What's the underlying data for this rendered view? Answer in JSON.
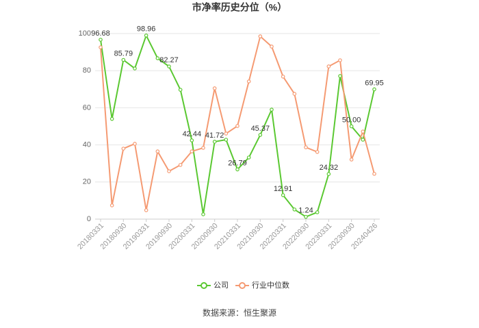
{
  "chart_data": {
    "type": "line",
    "title": "市净率历史分位（%）",
    "categories": [
      "20180331",
      null,
      "20180930",
      null,
      "20190331",
      null,
      "20190930",
      null,
      "20200331",
      null,
      "20200930",
      null,
      "20210331",
      null,
      "20210930",
      null,
      "20220331",
      null,
      "20220930",
      null,
      "20230331",
      null,
      "20230930",
      null,
      "20240426"
    ],
    "series": [
      {
        "name": "公司",
        "color": "#5ac831",
        "values": [
          96.68,
          54,
          85.79,
          81.2,
          98.96,
          86.7,
          82.27,
          69.7,
          42.44,
          2.6,
          41.72,
          42.8,
          26.79,
          33.2,
          45.37,
          59,
          12.91,
          5.2,
          1.24,
          3.7,
          24.32,
          77.1,
          50.0,
          42.8,
          69.95
        ],
        "value_labels": [
          "96.68",
          null,
          "85.79",
          null,
          "98.96",
          null,
          "82.27",
          null,
          "42.44",
          null,
          "41.72",
          null,
          "26.79",
          null,
          "45.37",
          null,
          "12.91",
          null,
          "1.24",
          null,
          "24.32",
          null,
          "50.00",
          null,
          "69.95"
        ]
      },
      {
        "name": "行业中位数",
        "color": "#f59a72",
        "values": [
          92.6,
          7.4,
          38,
          40.6,
          4.8,
          36.5,
          25.8,
          29.2,
          36.5,
          38.4,
          70.5,
          46.1,
          50.2,
          74.2,
          98.5,
          93,
          76.8,
          67.5,
          38.7,
          36.2,
          82.3,
          85.6,
          32.1,
          47.2,
          24.4
        ]
      }
    ],
    "ylim": [
      0,
      100
    ],
    "yticks": [
      0,
      20,
      40,
      60,
      80,
      100
    ],
    "grid": true,
    "legend": "bottom",
    "source": "数据来源：恒生聚源"
  }
}
